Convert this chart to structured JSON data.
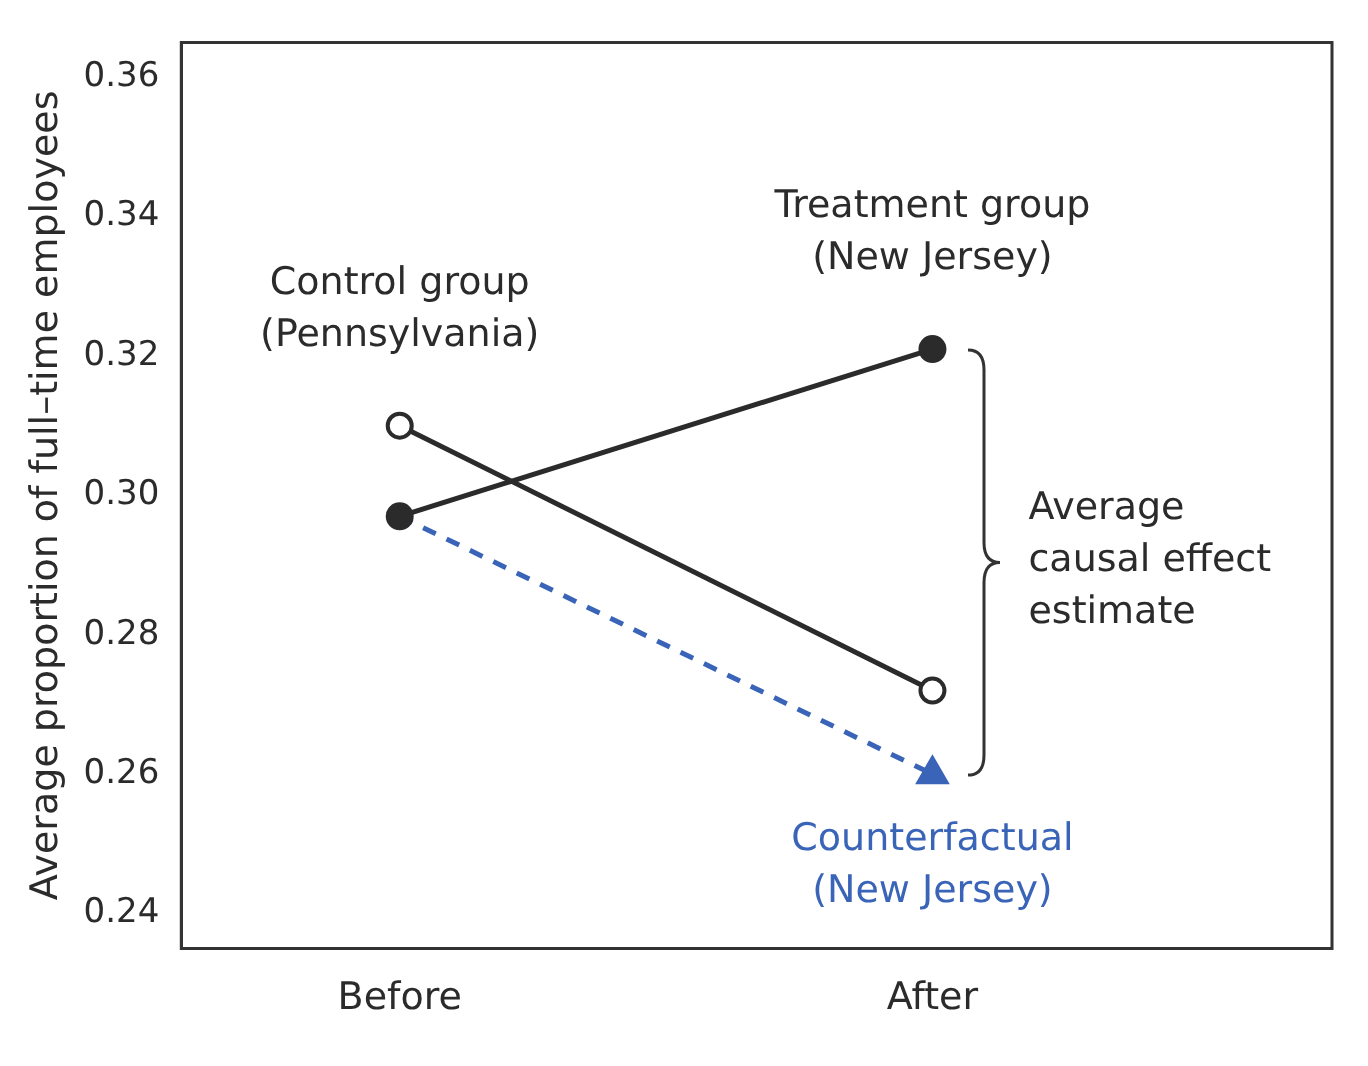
{
  "chart_data": {
    "type": "line",
    "categories": [
      "Before",
      "After"
    ],
    "ylabel": "Average proportion of full–time employees",
    "ylim": [
      0.235,
      0.365
    ],
    "yticks": [
      {
        "value": 0.24,
        "label": "0.24"
      },
      {
        "value": 0.26,
        "label": "0.26"
      },
      {
        "value": 0.28,
        "label": "0.28"
      },
      {
        "value": 0.3,
        "label": "0.30"
      },
      {
        "value": 0.32,
        "label": "0.32"
      },
      {
        "value": 0.34,
        "label": "0.34"
      },
      {
        "value": 0.36,
        "label": "0.36"
      }
    ],
    "grid": false,
    "legend": false,
    "series": [
      {
        "name": "Control group (Pennsylvania)",
        "color": "#2b2b2b",
        "values": [
          0.31,
          0.272
        ],
        "marker": "circle",
        "line_style": "solid"
      },
      {
        "name": "Treatment group (New Jersey)",
        "color": "#2b2b2b",
        "values": [
          0.297,
          0.321
        ],
        "marker": "circle",
        "line_style": "solid"
      },
      {
        "name": "Counterfactual (New Jersey)",
        "color": "#3a64b8",
        "values": [
          0.297,
          0.26
        ],
        "marker": "triangle",
        "line_style": "dashed"
      }
    ],
    "annotations": [
      "Average causal effect estimate"
    ]
  }
}
